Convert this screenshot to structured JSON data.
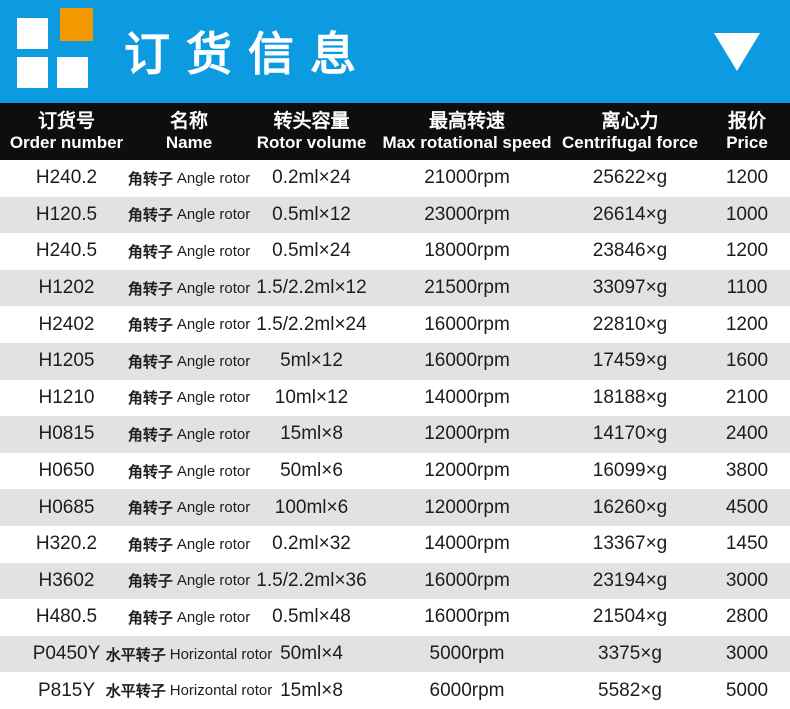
{
  "colors": {
    "accent_blue": "#0c9ae0",
    "logo_orange": "#f39800",
    "header_black": "#0e0e0e",
    "row_gray": "#e2e2e2",
    "text_dark": "#1d1d1d",
    "white": "#ffffff"
  },
  "banner": {
    "title": "订货信息",
    "logo_squares": [
      "white-square",
      "orange-square",
      "white-square",
      "white-square"
    ],
    "corner_icon": "triangle-down-icon"
  },
  "table": {
    "headers": [
      {
        "cn": "订货号",
        "en": "Order number"
      },
      {
        "cn": "名称",
        "en": "Name"
      },
      {
        "cn": "转头容量",
        "en": "Rotor volume"
      },
      {
        "cn": "最高转速",
        "en": "Max rotational speed"
      },
      {
        "cn": "离心力",
        "en": "Centrifugal force"
      },
      {
        "cn": "报价",
        "en": "Price"
      }
    ],
    "rows": [
      {
        "order": "H240.2",
        "name_cn": "角转子",
        "name_en": "Angle rotor",
        "volume": "0.2ml×24",
        "speed": "21000rpm",
        "force": "25622×g",
        "price": "1200"
      },
      {
        "order": "H120.5",
        "name_cn": "角转子",
        "name_en": "Angle rotor",
        "volume": "0.5ml×12",
        "speed": "23000rpm",
        "force": "26614×g",
        "price": "1000"
      },
      {
        "order": "H240.5",
        "name_cn": "角转子",
        "name_en": "Angle rotor",
        "volume": "0.5ml×24",
        "speed": "18000rpm",
        "force": "23846×g",
        "price": "1200"
      },
      {
        "order": "H1202",
        "name_cn": "角转子",
        "name_en": "Angle rotor",
        "volume": "1.5/2.2ml×12",
        "speed": "21500rpm",
        "force": "33097×g",
        "price": "1100"
      },
      {
        "order": "H2402",
        "name_cn": "角转子",
        "name_en": "Angle rotor",
        "volume": "1.5/2.2ml×24",
        "speed": "16000rpm",
        "force": "22810×g",
        "price": "1200"
      },
      {
        "order": "H1205",
        "name_cn": "角转子",
        "name_en": "Angle rotor",
        "volume": "5ml×12",
        "speed": "16000rpm",
        "force": "17459×g",
        "price": "1600"
      },
      {
        "order": "H1210",
        "name_cn": "角转子",
        "name_en": "Angle rotor",
        "volume": "10ml×12",
        "speed": "14000rpm",
        "force": "18188×g",
        "price": "2100"
      },
      {
        "order": "H0815",
        "name_cn": "角转子",
        "name_en": "Angle rotor",
        "volume": "15ml×8",
        "speed": "12000rpm",
        "force": "14170×g",
        "price": "2400"
      },
      {
        "order": "H0650",
        "name_cn": "角转子",
        "name_en": "Angle rotor",
        "volume": "50ml×6",
        "speed": "12000rpm",
        "force": "16099×g",
        "price": "3800"
      },
      {
        "order": "H0685",
        "name_cn": "角转子",
        "name_en": "Angle rotor",
        "volume": "100ml×6",
        "speed": "12000rpm",
        "force": "16260×g",
        "price": "4500"
      },
      {
        "order": "H320.2",
        "name_cn": "角转子",
        "name_en": "Angle rotor",
        "volume": "0.2ml×32",
        "speed": "14000rpm",
        "force": "13367×g",
        "price": "1450"
      },
      {
        "order": "H3602",
        "name_cn": "角转子",
        "name_en": "Angle rotor",
        "volume": "1.5/2.2ml×36",
        "speed": "16000rpm",
        "force": "23194×g",
        "price": "3000"
      },
      {
        "order": "H480.5",
        "name_cn": "角转子",
        "name_en": "Angle rotor",
        "volume": "0.5ml×48",
        "speed": "16000rpm",
        "force": "21504×g",
        "price": "2800"
      },
      {
        "order": "P0450Y",
        "name_cn": "水平转子",
        "name_en": "Horizontal rotor",
        "volume": "50ml×4",
        "speed": "5000rpm",
        "force": "3375×g",
        "price": "3000"
      },
      {
        "order": "P815Y",
        "name_cn": "水平转子",
        "name_en": "Horizontal rotor",
        "volume": "15ml×8",
        "speed": "6000rpm",
        "force": "5582×g",
        "price": "5000"
      }
    ]
  }
}
